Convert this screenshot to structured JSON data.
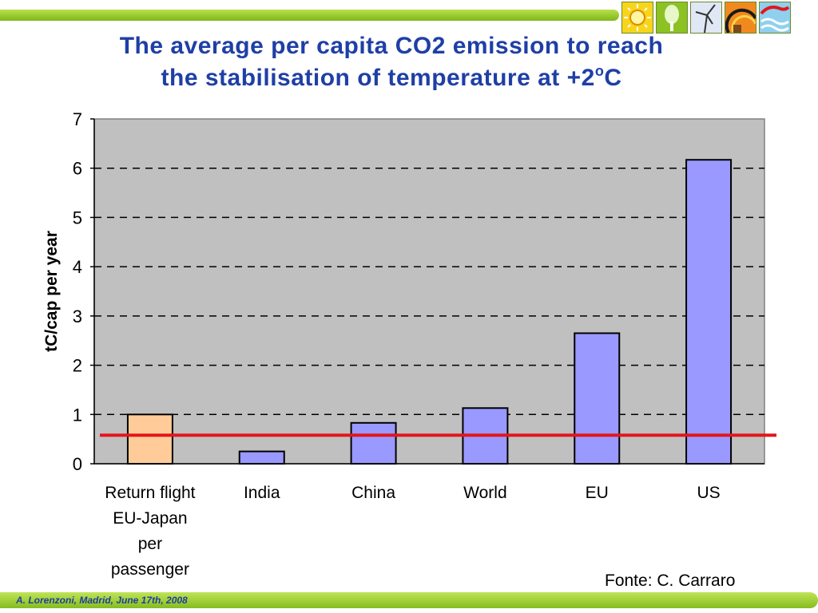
{
  "slide": {
    "title_line1": "The average per capita CO2 emission to reach",
    "title_line2_prefix": "the stabilisation of temperature at +2",
    "title_degree": "o",
    "title_line2_suffix": "C",
    "source": "Fonte: C. Carraro",
    "footer": "A. Lorenzoni, Madrid, June 17th, 2008"
  },
  "icons": [
    "sun-icon",
    "tree-icon",
    "wind-turbine-icon",
    "rainbow-icon",
    "wave-icon"
  ],
  "colors": {
    "brand_green": "#8cc224",
    "title_blue": "#1f3fa6",
    "plot_bg": "#c0c0c0",
    "bar_fill": "#9999ff",
    "highlight_bar_fill": "#ffcc99",
    "threshold_line": "#e3161b"
  },
  "chart_data": {
    "type": "bar",
    "categories": [
      "Return flight EU-Japan per passenger",
      "India",
      "China",
      "World",
      "EU",
      "US"
    ],
    "category_label_lines": [
      [
        "Return flight",
        "EU-Japan",
        "per",
        "passenger"
      ],
      [
        "India"
      ],
      [
        "China"
      ],
      [
        "World"
      ],
      [
        "EU"
      ],
      [
        "US"
      ]
    ],
    "values": [
      1.0,
      0.25,
      0.83,
      1.13,
      2.65,
      6.17
    ],
    "highlighted_index": 0,
    "ylabel": "tC/cap per year",
    "xlabel": "",
    "ylim": [
      0,
      7
    ],
    "yticks": [
      0,
      1,
      2,
      3,
      4,
      5,
      6,
      7
    ],
    "grid": "horizontal dashed",
    "threshold": 0.58
  }
}
